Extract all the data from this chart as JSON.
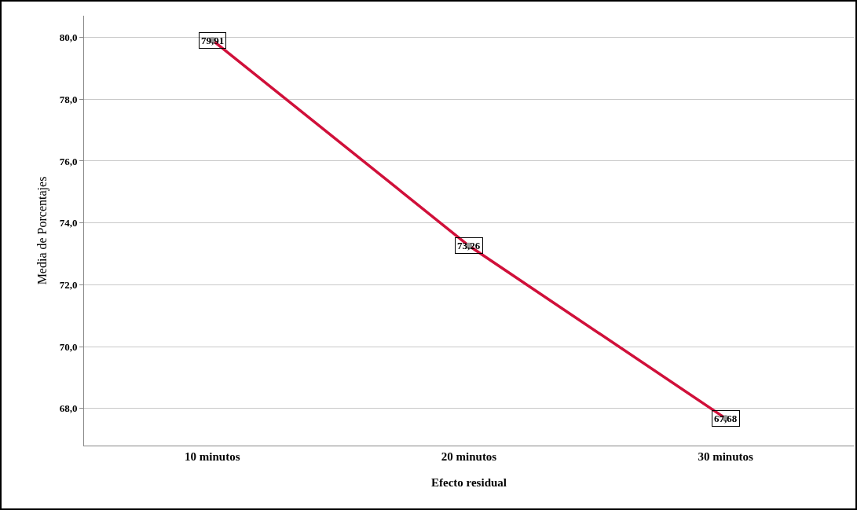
{
  "chart_data": {
    "type": "line",
    "xlabel": "Efecto residual",
    "ylabel": "Media de Porcentajes",
    "categories": [
      "10 minutos",
      "20 minutos",
      "30 minutos"
    ],
    "series": [
      {
        "color": "#d0103a",
        "values": [
          79.91,
          73.26,
          67.68
        ],
        "value_labels": [
          "79,91",
          "73,26",
          "67,68"
        ]
      }
    ],
    "ylim": [
      66.8,
      80.7
    ],
    "yticks": [
      {
        "value": 68,
        "label": "68,0"
      },
      {
        "value": 70,
        "label": "70,0"
      },
      {
        "value": 72,
        "label": "72,0"
      },
      {
        "value": 74,
        "label": "74,0"
      },
      {
        "value": 76,
        "label": "76,0"
      },
      {
        "value": 78,
        "label": "78,0"
      },
      {
        "value": 80,
        "label": "80,0"
      }
    ],
    "grid": "y",
    "marker": "circle",
    "line_style": "solid"
  }
}
